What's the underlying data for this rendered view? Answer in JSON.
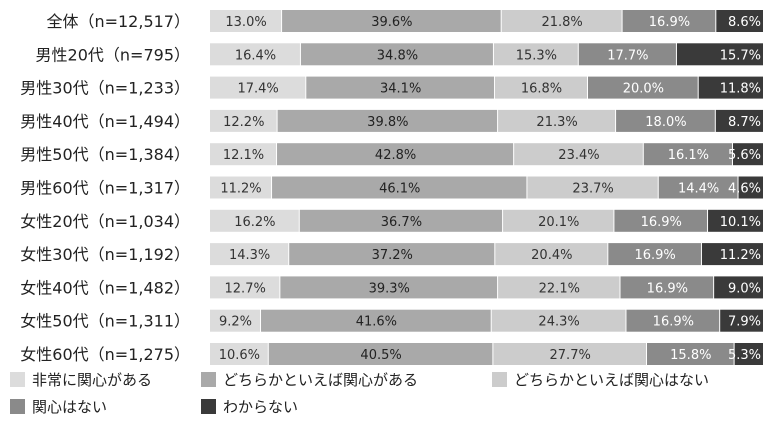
{
  "chart_data": {
    "type": "bar",
    "orientation": "horizontal",
    "stacked": true,
    "percent": true,
    "title": "",
    "xlabel": "",
    "ylabel": "",
    "xlim": [
      0,
      100
    ],
    "grid": false,
    "legend_position": "bottom-left",
    "categories": [
      "全体（n=12,517）",
      "男性20代（n=795）",
      "男性30代（n=1,233）",
      "男性40代（n=1,494）",
      "男性50代（n=1,384）",
      "男性60代（n=1,317）",
      "女性20代（n=1,034）",
      "女性30代（n=1,192）",
      "女性40代（n=1,482）",
      "女性50代（n=1,311）",
      "女性60代（n=1,275）"
    ],
    "series": [
      {
        "name": "非常に関心がある",
        "color": "#dcdcdc",
        "label_color": "#333333",
        "values": [
          13.0,
          16.4,
          17.4,
          12.2,
          12.1,
          11.2,
          16.2,
          14.3,
          12.7,
          9.2,
          10.6
        ]
      },
      {
        "name": "どちらかといえば関心がある",
        "color": "#a9a9a9",
        "label_color": "#222222",
        "values": [
          39.6,
          34.8,
          34.1,
          39.8,
          42.8,
          46.1,
          36.7,
          37.2,
          39.3,
          41.6,
          40.5
        ]
      },
      {
        "name": "どちらかといえば関心はない",
        "color": "#cccccc",
        "label_color": "#333333",
        "values": [
          21.8,
          15.3,
          16.8,
          21.3,
          23.4,
          23.7,
          20.1,
          20.4,
          22.1,
          24.3,
          27.7
        ]
      },
      {
        "name": "関心はない",
        "color": "#8a8a8a",
        "label_color": "#ffffff",
        "values": [
          16.9,
          17.7,
          20.0,
          18.0,
          16.1,
          14.4,
          16.9,
          16.9,
          16.9,
          16.9,
          15.8
        ]
      },
      {
        "name": "わからない",
        "color": "#3a3a3a",
        "label_color": "#ffffff",
        "values": [
          8.6,
          15.7,
          11.8,
          8.7,
          5.6,
          4.6,
          10.1,
          11.2,
          9.0,
          7.9,
          5.3
        ]
      }
    ],
    "value_labels": [
      [
        "13.0%",
        "39.6%",
        "21.8%",
        "16.9%",
        "8.6%"
      ],
      [
        "16.4%",
        "34.8%",
        "15.3%",
        "17.7%",
        "15.7%"
      ],
      [
        "17.4%",
        "34.1%",
        "16.8%",
        "20.0%",
        "11.8%"
      ],
      [
        "12.2%",
        "39.8%",
        "21.3%",
        "18.0%",
        "8.7%"
      ],
      [
        "12.1%",
        "42.8%",
        "23.4%",
        "16.1%",
        "5.6%"
      ],
      [
        "11.2%",
        "46.1%",
        "23.7%",
        "14.4%",
        "4.6%"
      ],
      [
        "16.2%",
        "36.7%",
        "20.1%",
        "16.9%",
        "10.1%"
      ],
      [
        "14.3%",
        "37.2%",
        "20.4%",
        "16.9%",
        "11.2%"
      ],
      [
        "12.7%",
        "39.3%",
        "22.1%",
        "16.9%",
        "9.0%"
      ],
      [
        "9.2%",
        "41.6%",
        "24.3%",
        "16.9%",
        "7.9%"
      ],
      [
        "10.6%",
        "40.5%",
        "27.7%",
        "15.8%",
        "5.3%"
      ]
    ]
  }
}
